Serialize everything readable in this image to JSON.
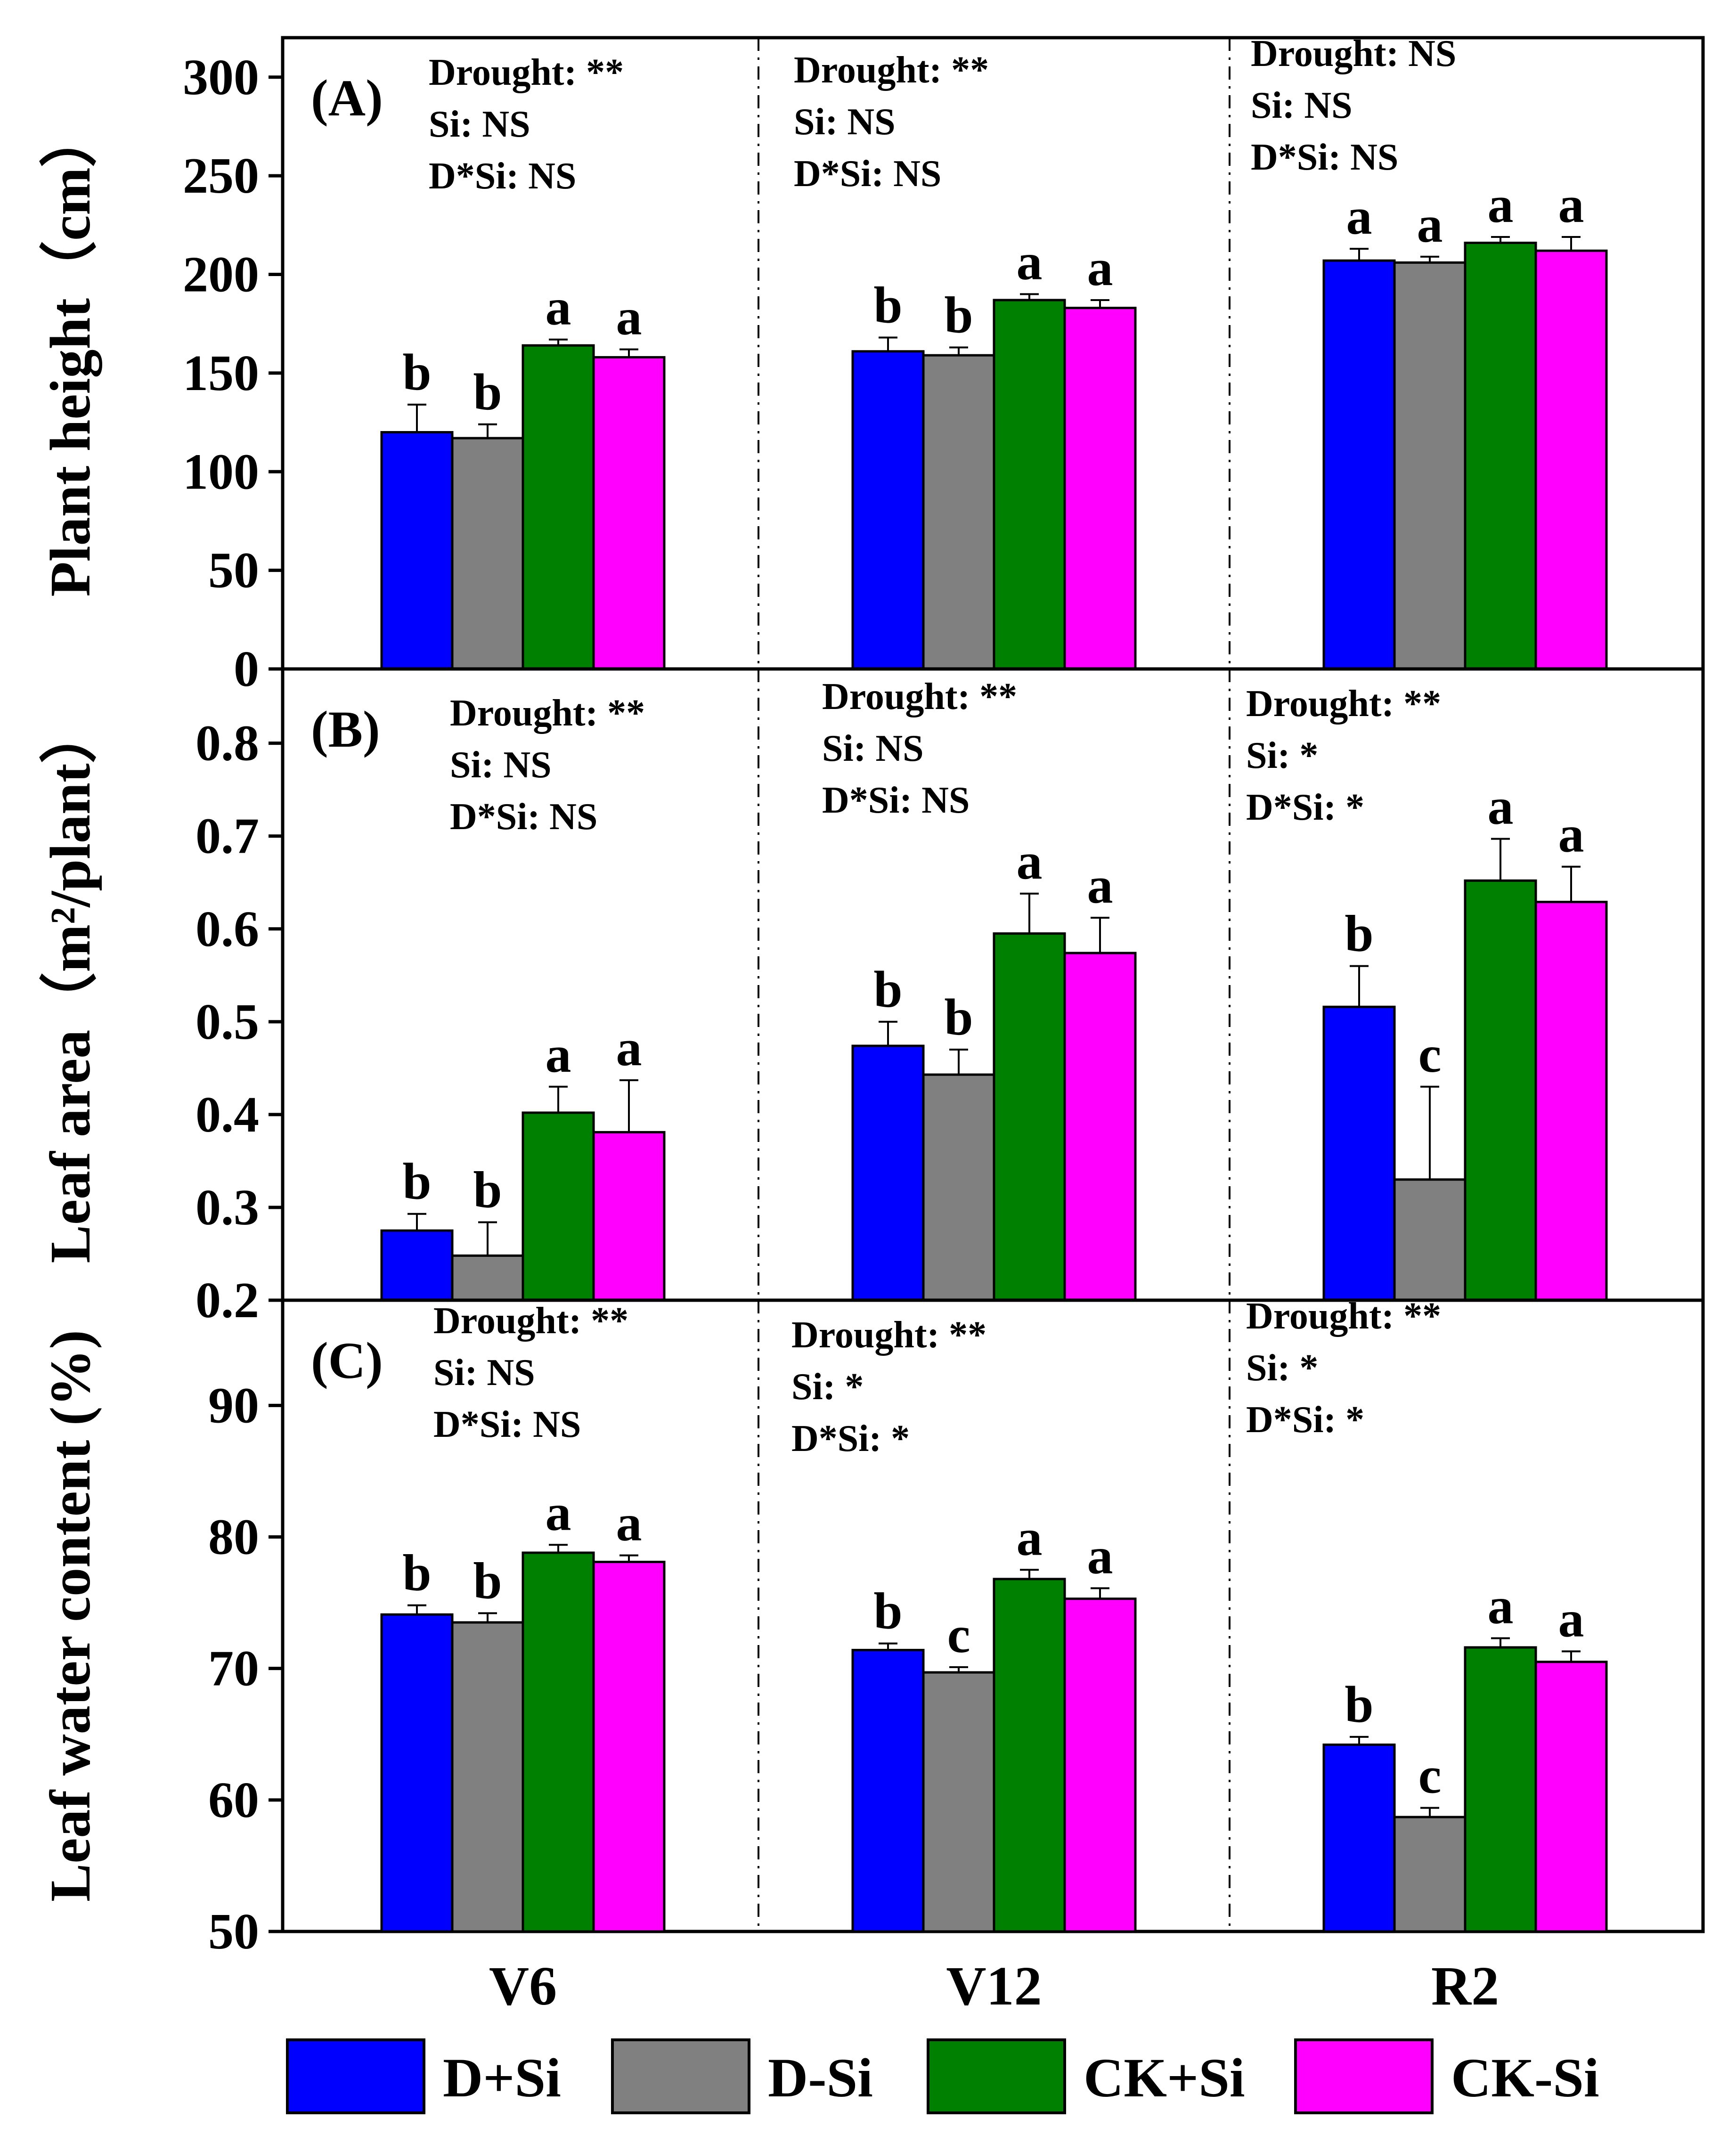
{
  "legend": [
    {
      "label": "D+Si",
      "color": "#0000ff"
    },
    {
      "label": "D-Si",
      "color": "#808080"
    },
    {
      "label": "CK+Si",
      "color": "#008000"
    },
    {
      "label": "CK-Si",
      "color": "#ff00ff"
    }
  ],
  "chart_data": [
    {
      "type": "bar",
      "panel_label": "(A)",
      "ylabel": "Plant height（cm）",
      "xlabel": "",
      "categories": [
        "V6",
        "V12",
        "R2"
      ],
      "ylim": [
        0,
        320
      ],
      "yticks": [
        0,
        50,
        100,
        150,
        200,
        250,
        300
      ],
      "ytick_labels": [
        "0",
        "50",
        "100",
        "150",
        "200",
        "250",
        "300"
      ],
      "series": [
        {
          "name": "D+Si",
          "values": [
            120,
            161,
            207
          ],
          "errors": [
            14,
            7,
            6
          ],
          "letters": [
            "b",
            "b",
            "a"
          ]
        },
        {
          "name": "D-Si",
          "values": [
            117,
            159,
            206
          ],
          "errors": [
            7,
            4,
            3
          ],
          "letters": [
            "b",
            "b",
            "a"
          ]
        },
        {
          "name": "CK+Si",
          "values": [
            164,
            187,
            216
          ],
          "errors": [
            3,
            3,
            3
          ],
          "letters": [
            "a",
            "a",
            "a"
          ]
        },
        {
          "name": "CK-Si",
          "values": [
            158,
            183,
            212
          ],
          "errors": [
            4,
            4,
            7
          ],
          "letters": [
            "a",
            "a",
            "a"
          ]
        }
      ],
      "annotations": [
        [
          "Drought: **",
          "Si: NS",
          "D*Si: NS"
        ],
        [
          "Drought: **",
          "Si: NS",
          "D*Si: NS"
        ],
        [
          "Drought: NS",
          "Si: NS",
          "D*Si: NS"
        ]
      ]
    },
    {
      "type": "bar",
      "panel_label": "(B)",
      "ylabel": "Leaf area（m²/plant）",
      "xlabel": "",
      "categories": [
        "V6",
        "V12",
        "R2"
      ],
      "ylim": [
        0.2,
        0.88
      ],
      "yticks": [
        0.2,
        0.3,
        0.4,
        0.5,
        0.6,
        0.7,
        0.8
      ],
      "ytick_labels": [
        "0.2",
        "0.3",
        "0.4",
        "0.5",
        "0.6",
        "0.7",
        "0.8"
      ],
      "series": [
        {
          "name": "D+Si",
          "values": [
            0.275,
            0.474,
            0.516
          ],
          "errors": [
            0.018,
            0.026,
            0.044
          ],
          "letters": [
            "b",
            "b",
            "b"
          ]
        },
        {
          "name": "D-Si",
          "values": [
            0.248,
            0.443,
            0.33
          ],
          "errors": [
            0.036,
            0.027,
            0.1
          ],
          "letters": [
            "b",
            "b",
            "c"
          ]
        },
        {
          "name": "CK+Si",
          "values": [
            0.402,
            0.595,
            0.652
          ],
          "errors": [
            0.028,
            0.043,
            0.045
          ],
          "letters": [
            "a",
            "a",
            "a"
          ]
        },
        {
          "name": "CK-Si",
          "values": [
            0.381,
            0.574,
            0.629
          ],
          "errors": [
            0.056,
            0.038,
            0.038
          ],
          "letters": [
            "a",
            "a",
            "a"
          ]
        }
      ],
      "annotations": [
        [
          "Drought: **",
          "Si: NS",
          "D*Si: NS"
        ],
        [
          "Drought: **",
          "Si: NS",
          "D*Si: NS"
        ],
        [
          "Drought: **",
          "Si: *",
          "D*Si: *"
        ]
      ]
    },
    {
      "type": "bar",
      "panel_label": "(C)",
      "ylabel": "Leaf  water content (%)",
      "xlabel": "",
      "categories": [
        "V6",
        "V12",
        "R2"
      ],
      "ylim": [
        50,
        98
      ],
      "yticks": [
        50,
        60,
        70,
        80,
        90
      ],
      "ytick_labels": [
        "50",
        "60",
        "70",
        "80",
        "90"
      ],
      "series": [
        {
          "name": "D+Si",
          "values": [
            74.1,
            71.4,
            64.2
          ],
          "errors": [
            0.7,
            0.5,
            0.6
          ],
          "letters": [
            "b",
            "b",
            "b"
          ]
        },
        {
          "name": "D-Si",
          "values": [
            73.5,
            69.7,
            58.7
          ],
          "errors": [
            0.7,
            0.4,
            0.7
          ],
          "letters": [
            "b",
            "c",
            "c"
          ]
        },
        {
          "name": "CK+Si",
          "values": [
            78.8,
            76.8,
            71.6
          ],
          "errors": [
            0.6,
            0.7,
            0.7
          ],
          "letters": [
            "a",
            "a",
            "a"
          ]
        },
        {
          "name": "CK-Si",
          "values": [
            78.1,
            75.3,
            70.5
          ],
          "errors": [
            0.5,
            0.8,
            0.8
          ],
          "letters": [
            "a",
            "a",
            "a"
          ]
        }
      ],
      "annotations": [
        [
          "Drought: **",
          "Si: NS",
          "D*Si: NS"
        ],
        [
          "Drought: **",
          "Si: *",
          "D*Si: *"
        ],
        [
          "Drought: **",
          "Si: *",
          "D*Si: *"
        ]
      ]
    }
  ]
}
